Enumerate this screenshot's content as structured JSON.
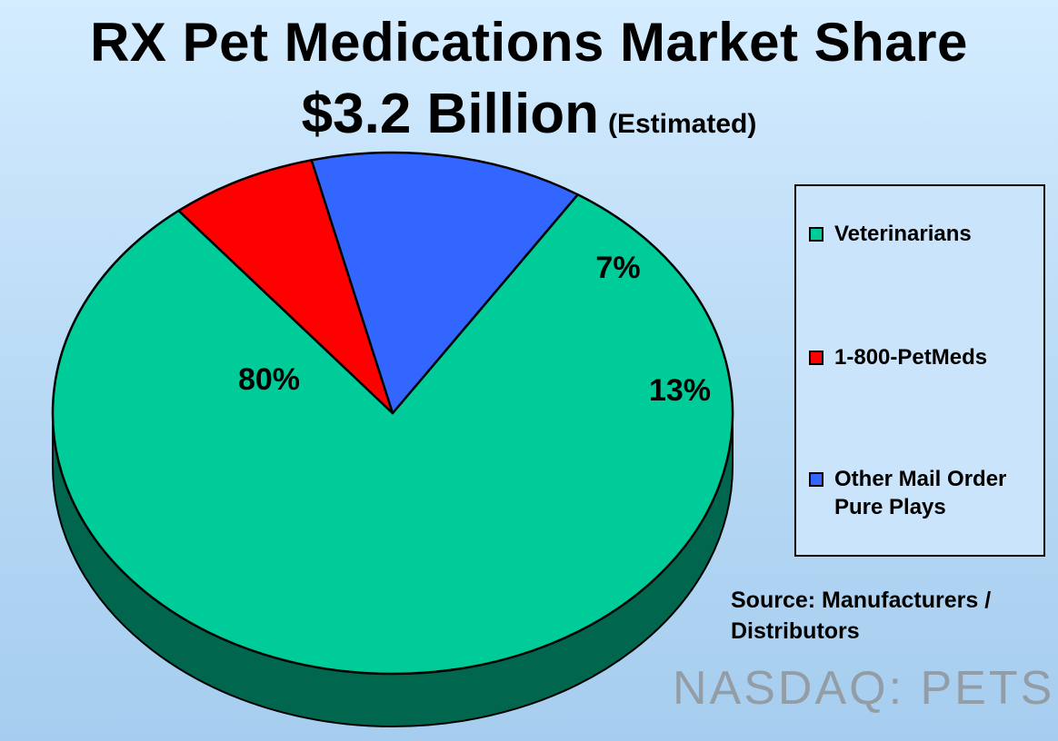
{
  "title": {
    "line1": "RX Pet Medications Market Share",
    "amount": "$3.2 Billion",
    "note": "(Estimated)"
  },
  "chart_data": {
    "type": "pie",
    "title": "RX Pet Medications Market Share",
    "subtitle": "$3.2 Billion (Estimated)",
    "categories": [
      "Veterinarians",
      "1-800-PetMeds",
      "Other Mail Order Pure Plays"
    ],
    "values": [
      80,
      7,
      13
    ],
    "labels": [
      "80%",
      "7%",
      "13%"
    ],
    "unit": "%",
    "style": "3d",
    "legend_position": "right",
    "colors": [
      "#00cc99",
      "#ff0000",
      "#3366ff"
    ],
    "side_colors": [
      "#00664d",
      "#800000",
      "#1a3380"
    ]
  },
  "legend": {
    "items": [
      {
        "lines": [
          "Veterinarians"
        ]
      },
      {
        "lines": [
          "1-800-PetMeds"
        ]
      },
      {
        "lines": [
          "Other Mail Order",
          "Pure Plays"
        ]
      }
    ]
  },
  "source": {
    "line1": "Source: Manufacturers /",
    "line2": "Distributors"
  },
  "watermark": "NASDAQ: PETS"
}
